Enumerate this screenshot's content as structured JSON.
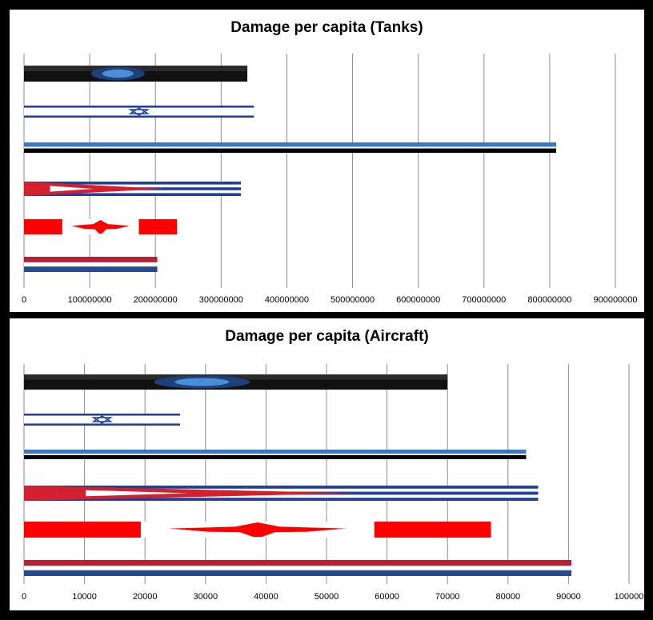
{
  "chart_data": [
    {
      "type": "bar",
      "orientation": "horizontal",
      "title": "Damage per capita (Tanks)",
      "xlabel": "",
      "ylabel": "",
      "xlim": [
        0,
        900000000
      ],
      "x_ticks": [
        0,
        100000000,
        200000000,
        300000000,
        400000000,
        500000000,
        600000000,
        700000000,
        800000000,
        900000000
      ],
      "x_tick_labels": [
        "0",
        "100000000",
        "200000000",
        "300000000",
        "400000000",
        "500000000",
        "600000000",
        "700000000",
        "800000000",
        "900000000"
      ],
      "grid": true,
      "legend": "none",
      "categories": [
        "logo-flag",
        "israel-flag",
        "blue-black-flag",
        "red-blue-flag",
        "canada-flag",
        "red-blue-stripes-flag"
      ],
      "values": [
        340000000,
        350000000,
        810000000,
        330000000,
        233000000,
        203000000
      ]
    },
    {
      "type": "bar",
      "orientation": "horizontal",
      "title": "Damage per capita (Aircraft)",
      "xlabel": "",
      "ylabel": "",
      "xlim": [
        0,
        100000
      ],
      "x_ticks": [
        0,
        10000,
        20000,
        30000,
        40000,
        50000,
        60000,
        70000,
        80000,
        90000,
        100000
      ],
      "x_tick_labels": [
        "0",
        "10000",
        "20000",
        "30000",
        "40000",
        "50000",
        "60000",
        "70000",
        "80000",
        "90000",
        "100000"
      ],
      "grid": true,
      "legend": "none",
      "categories": [
        "logo-flag",
        "israel-flag",
        "blue-black-flag",
        "red-blue-flag",
        "canada-flag",
        "red-blue-stripes-flag"
      ],
      "values": [
        70000,
        25800,
        83000,
        85000,
        77200,
        90500
      ]
    }
  ]
}
